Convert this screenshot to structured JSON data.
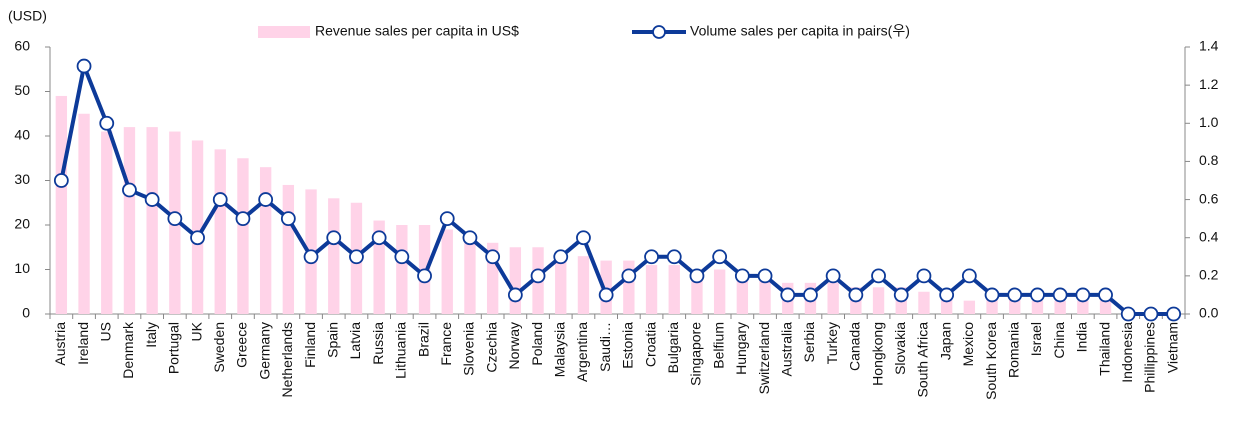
{
  "chart_data": {
    "type": "combo",
    "y_label": "(USD)",
    "categories": [
      "Austria",
      "Ireland",
      "US",
      "Denmark",
      "Italy",
      "Portugal",
      "UK",
      "Sweden",
      "Greece",
      "Germany",
      "Netherlands",
      "Finland",
      "Spain",
      "Latvia",
      "Russia",
      "Lithuania",
      "Brazil",
      "France",
      "Slovenia",
      "Czechia",
      "Norway",
      "Poland",
      "Malaysia",
      "Argentina",
      "Saudi…",
      "Estonia",
      "Croatia",
      "Bulgaria",
      "Singapore",
      "Belfium",
      "Hungary",
      "Switzerland",
      "Australia",
      "Serbia",
      "Turkey",
      "Canada",
      "Hongkong",
      "Slovakia",
      "South Africa",
      "Japan",
      "Mexico",
      "South Korea",
      "Romania",
      "Israel",
      "China",
      "India",
      "Thailand",
      "Indonesia",
      "Phillippines",
      "Vietnam"
    ],
    "series": [
      {
        "name": "Revenue sales per capita in US$",
        "type": "bar",
        "color": "#ffd3e8",
        "values": [
          49,
          45,
          41,
          42,
          42,
          41,
          39,
          37,
          35,
          33,
          29,
          28,
          26,
          25,
          21,
          20,
          20,
          19,
          17,
          16,
          15,
          15,
          14,
          13,
          12,
          12,
          11,
          11,
          10,
          10,
          9,
          8,
          7,
          7,
          7,
          6,
          6,
          6,
          5,
          5,
          3,
          4,
          4,
          3,
          3,
          3,
          3,
          1,
          1,
          0.5
        ]
      },
      {
        "name": "Volume sales per capita in pairs(우)",
        "type": "line",
        "axis": "y2",
        "color": "#0d3a99",
        "values": [
          0.7,
          1.3,
          1.0,
          0.65,
          0.6,
          0.5,
          0.4,
          0.6,
          0.5,
          0.6,
          0.5,
          0.3,
          0.4,
          0.3,
          0.4,
          0.3,
          0.2,
          0.5,
          0.4,
          0.3,
          0.1,
          0.2,
          0.3,
          0.4,
          0.1,
          0.2,
          0.3,
          0.3,
          0.2,
          0.3,
          0.2,
          0.2,
          0.1,
          0.1,
          0.2,
          0.1,
          0.2,
          0.1,
          0.2,
          0.1,
          0.2,
          0.1,
          0.1,
          0.1,
          0.1,
          0.1,
          0.1,
          0,
          0,
          0
        ]
      }
    ],
    "ylim": [
      0,
      60
    ],
    "yticks": [
      0,
      10,
      20,
      30,
      40,
      50,
      60
    ],
    "y2lim": [
      0,
      1.4
    ],
    "y2ticks": [
      {
        "value": 0,
        "label": "0.0"
      },
      0.2,
      0.4,
      0.6,
      0.8,
      {
        "value": 1,
        "label": "1.0"
      },
      1.2,
      1.4
    ],
    "legend": "top",
    "grid": false
  }
}
